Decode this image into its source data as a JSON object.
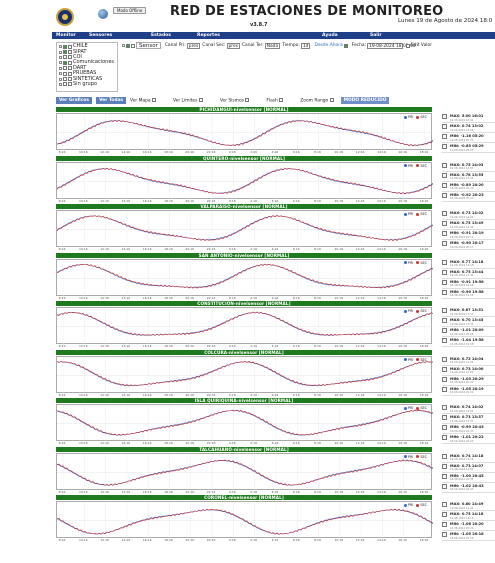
{
  "header": {
    "title": "RED DE ESTACIONES DE MONITOREO",
    "version": "v3.8.7",
    "offline_label": "Modo Offline",
    "date": "Lunes 19 de Agosto de 2024 18:0"
  },
  "menu": [
    "Monitor",
    "Sensores",
    "Estados",
    "Reportes",
    "Ayuda",
    "Salir"
  ],
  "tree": {
    "items": [
      {
        "label": "CHILE",
        "checked": true
      },
      {
        "label": "SIPAT",
        "checked": true
      },
      {
        "label": "COI",
        "checked": false
      },
      {
        "label": "Comunicaciones",
        "checked": true
      },
      {
        "label": "DART",
        "checked": false
      },
      {
        "label": "PRUEBAS",
        "checked": false
      },
      {
        "label": "SINTETICAS",
        "checked": false
      },
      {
        "label": "Sin grupo",
        "checked": false
      }
    ]
  },
  "controls": {
    "sensor_label": "Sensor",
    "canal_pri_label": "Canal Pri:",
    "canal_pri_value": "pres",
    "canal_sec_label": "Canal Sec:",
    "canal_sec_value": "pres",
    "canal_ter_label": "Canal Ter:",
    "canal_ter_value": "Nada",
    "tiempo_label": "Tiempo:",
    "tiempo_value": "1d",
    "ahora_label": "Desde Ahora",
    "fecha_label": "Fecha:",
    "fecha_value": "19-08-2024 18:01:00",
    "edit_label": "Edit Valor"
  },
  "buttons": {
    "ver_graficos": "Ver Graficos",
    "ver_todas": "Ver Todas",
    "ver_mapa": "Ver Mapa",
    "ver_limites": "Ver Limites",
    "ver_sismos": "Ver Sismos",
    "flash": "Flash",
    "zoom_rango": "Zoom Rango",
    "modo_reducido": "MODO REDUCIDO"
  },
  "legend": {
    "pri": "PRI",
    "sec": "SEC"
  },
  "x_ticks": [
    "8:16",
    "10:16",
    "12:16",
    "14:16",
    "16:16",
    "18:16",
    "20:16",
    "22:16",
    "0:16",
    "2:16",
    "4:16",
    "6:16",
    "8:16",
    "10:16",
    "12:16",
    "14:16",
    "16:16",
    "18:16"
  ],
  "stats_labels": {
    "max": "MAX",
    "min": "MIN"
  },
  "colors": {
    "header_bar": "#1f3f88",
    "panel_title": "#1f7a1f",
    "pri_line": "#3366cc",
    "sec_line": "#cc3333"
  },
  "panels": [
    {
      "title": "PICHIDANGUI-nivelsensor [NORMAL]",
      "stats": [
        {
          "label": "MAX: 5.00 16:01",
          "sub": "19-08-2024 16:01"
        },
        {
          "label": "MAX: 0.74 13:02",
          "sub": "19-08-2024 13:02"
        },
        {
          "label": "MIN: -1.16 05:20",
          "sub": "19-08-2024 05:20"
        },
        {
          "label": "MIN: -0.85 05:29",
          "sub": "19-08-2024 05:29"
        }
      ]
    },
    {
      "title": "QUINTERO-nivelsensor [NORMAL]",
      "stats": [
        {
          "label": "MAX: 0.75 14:03",
          "sub": "19-08-2024 14:03"
        },
        {
          "label": "MAX: 0.78 13:55",
          "sub": "19-08-2024 13:55"
        },
        {
          "label": "MIN: -0.89 20:20",
          "sub": "18-08-2024 20:20"
        },
        {
          "label": "MIN: -0.92 20:23",
          "sub": "18-08-2024 20:23"
        }
      ]
    },
    {
      "title": "VALPARAISO-nivelsensor [NORMAL]",
      "stats": [
        {
          "label": "MAX: 0.73 14:02",
          "sub": "19-08-2024 14:02"
        },
        {
          "label": "MAX: 0.75 13:49",
          "sub": "19-08-2024 13:49"
        },
        {
          "label": "MIN: -0.91 20:19",
          "sub": "18-08-2024 20:19"
        },
        {
          "label": "MIN: -0.90 20:17",
          "sub": "18-08-2024 20:17"
        }
      ]
    },
    {
      "title": "SAN ANTONIO-nivelsensor [NORMAL]",
      "stats": [
        {
          "label": "MAX: 0.77 14:18",
          "sub": "19-08-2024 14:18"
        },
        {
          "label": "MAX: 0.75 13:44",
          "sub": "19-08-2024 13:44"
        },
        {
          "label": "MIN: -0.91 19:56",
          "sub": "18-08-2024 19:56"
        },
        {
          "label": "MIN: -0.90 19:58",
          "sub": "18-08-2024 19:58"
        }
      ]
    },
    {
      "title": "CONSTITUCION-nivelsensor [NORMAL]",
      "stats": [
        {
          "label": "MAX: 0.67 13:51",
          "sub": "19-08-2024 13:51"
        },
        {
          "label": "MAX: 0.70 13:45",
          "sub": "19-08-2024 13:45"
        },
        {
          "label": "MIN: -1.01 20:09",
          "sub": "18-08-2024 20:09"
        },
        {
          "label": "MIN: -1.04 19:58",
          "sub": "18-08-2024 19:58"
        }
      ]
    },
    {
      "title": "COLCURA-nivelsensor [NORMAL]",
      "stats": [
        {
          "label": "MAX: 0.72 14:04",
          "sub": "19-08-2024 14:04"
        },
        {
          "label": "MAX: 0.73 14:00",
          "sub": "19-08-2024 14:00"
        },
        {
          "label": "MIN: -1.03 20:29",
          "sub": "18-08-2024 20:29"
        },
        {
          "label": "MIN: -1.05 20:19",
          "sub": "18-08-2024 20:19"
        }
      ]
    },
    {
      "title": "ISLA QUIRIQUINA-nivelsensor [NORMAL]",
      "stats": [
        {
          "label": "MAX: 0.74 14:02",
          "sub": "19-08-2024 14:02"
        },
        {
          "label": "MAX: 0.73 13:57",
          "sub": "19-08-2024 13:57"
        },
        {
          "label": "MIN: -0.99 20:43",
          "sub": "18-08-2024 20:43"
        },
        {
          "label": "MIN: -1.01 20:22",
          "sub": "18-08-2024 20:22"
        }
      ]
    },
    {
      "title": "TALCAHUANO-nivelsensor [NORMAL]",
      "stats": [
        {
          "label": "MAX: 0.74 14:18",
          "sub": "19-08-2024 14:18"
        },
        {
          "label": "MAX: 0.73 14:07",
          "sub": "19-08-2024 14:07"
        },
        {
          "label": "MIN: -1.00 20:45",
          "sub": "18-08-2024 20:45"
        },
        {
          "label": "MIN: -1.02 20:43",
          "sub": "18-08-2024 20:43"
        }
      ]
    },
    {
      "title": "CORONEL-nivelsensor [NORMAL]",
      "stats": [
        {
          "label": "MAX: 0.80 14:49",
          "sub": "19-08-2024 14:49"
        },
        {
          "label": "MAX: 0.75 14:16",
          "sub": "19-08-2024 14:16"
        },
        {
          "label": "MIN: -1.06 20:20",
          "sub": "18-08-2024 20:20"
        },
        {
          "label": "MIN: -1.05 20:18",
          "sub": "18-08-2024 20:18"
        }
      ]
    }
  ]
}
